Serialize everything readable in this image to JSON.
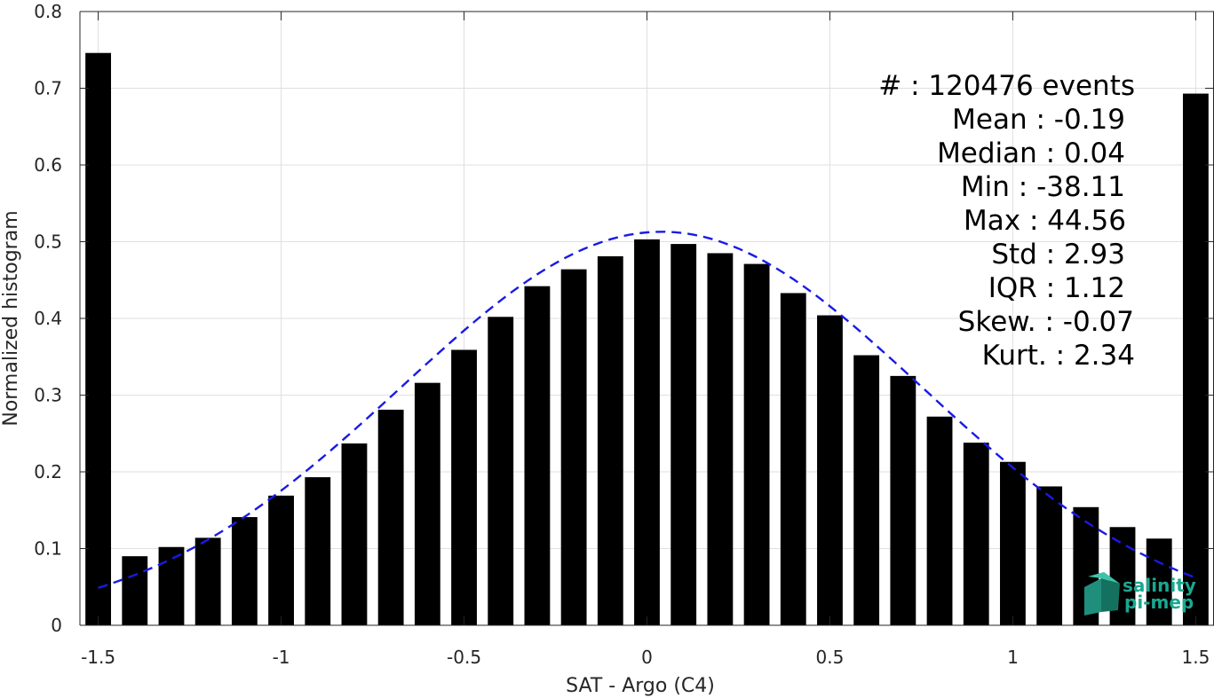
{
  "chart_data": {
    "type": "bar",
    "xlabel": "SAT - Argo (C4)",
    "ylabel": "Normalized histogram",
    "xlim": [
      -1.55,
      1.55
    ],
    "ylim": [
      0,
      0.8
    ],
    "xticks": [
      -1.5,
      -1,
      -0.5,
      0,
      0.5,
      1,
      1.5
    ],
    "xtick_labels": [
      "-1.5",
      "-1",
      "-0.5",
      "0",
      "0.5",
      "1",
      "1.5"
    ],
    "yticks": [
      0,
      0.1,
      0.2,
      0.3,
      0.4,
      0.5,
      0.6,
      0.7,
      0.8
    ],
    "ytick_labels": [
      "0",
      "0.1",
      "0.2",
      "0.3",
      "0.4",
      "0.5",
      "0.6",
      "0.7",
      "0.8"
    ],
    "grid": true,
    "bar_color": "#000000",
    "bar_width": 0.07,
    "bins": [
      -1.5,
      -1.4,
      -1.3,
      -1.2,
      -1.1,
      -1.0,
      -0.9,
      -0.8,
      -0.7,
      -0.6,
      -0.5,
      -0.4,
      -0.3,
      -0.2,
      -0.1,
      0.0,
      0.1,
      0.2,
      0.3,
      0.4,
      0.5,
      0.6,
      0.7,
      0.8,
      0.9,
      1.0,
      1.1,
      1.2,
      1.3,
      1.4,
      1.5
    ],
    "values": [
      0.746,
      0.09,
      0.102,
      0.114,
      0.141,
      0.169,
      0.193,
      0.237,
      0.281,
      0.316,
      0.359,
      0.402,
      0.442,
      0.464,
      0.481,
      0.503,
      0.497,
      0.485,
      0.471,
      0.433,
      0.404,
      0.352,
      0.325,
      0.272,
      0.238,
      0.213,
      0.181,
      0.154,
      0.128,
      0.113,
      0.693
    ],
    "fit_curve": {
      "style": "dashed",
      "color": "#1a1ae6",
      "x_range": [
        -1.5,
        1.5
      ],
      "mean": 0.04,
      "sigma": 0.71,
      "peak": 0.513
    },
    "annotations": [
      "#  : 120476 events",
      "Mean : -0.19",
      "Median : 0.04",
      "Min : -38.11",
      "Max : 44.56",
      "Std : 2.93",
      "IQR : 1.12",
      "Skew. : -0.07",
      "Kurt. : 2.34"
    ]
  },
  "logo": {
    "line1": "salinity",
    "line2": "pi-mep"
  }
}
